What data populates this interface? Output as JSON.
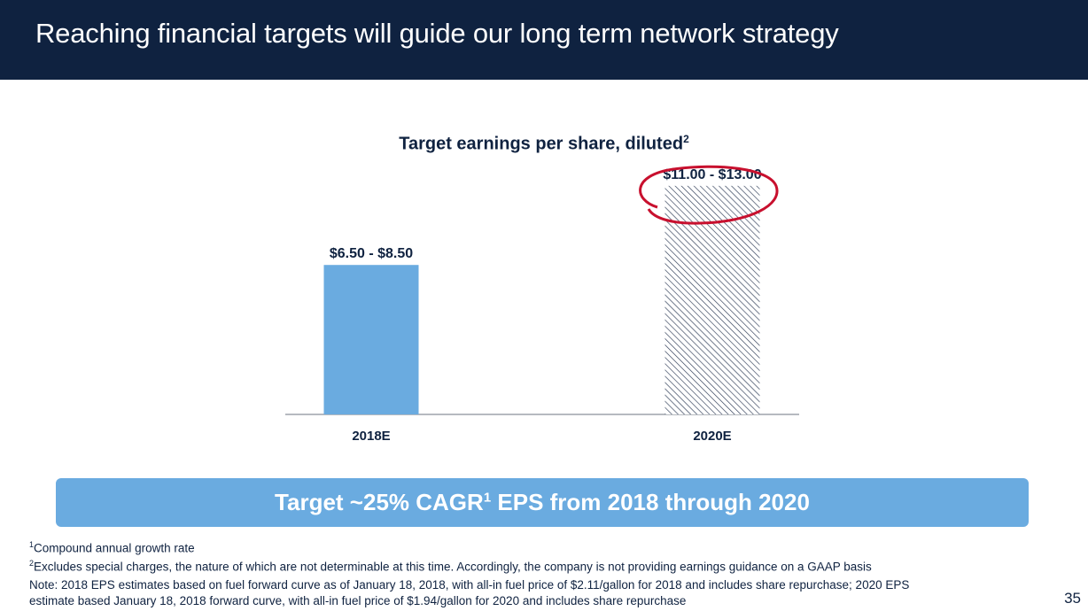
{
  "header": {
    "title": "Reaching financial targets will guide our long term network strategy"
  },
  "chart_data": {
    "type": "bar",
    "title": "Target earnings per share, diluted",
    "title_footnote_ref": "2",
    "categories": [
      "2018E",
      "2020E"
    ],
    "ranges": [
      [
        6.5,
        8.5
      ],
      [
        11.0,
        13.0
      ]
    ],
    "data_labels": [
      "$6.50 - $8.50",
      "$11.00 - $13.00"
    ],
    "bar_styles": [
      "solid",
      "hatched"
    ],
    "colors": {
      "solid": "#6aabe0",
      "hatch": "#2d3b55"
    },
    "annotation": "circled 2020E label",
    "xlabel": "",
    "ylabel": "",
    "ylim": [
      0,
      14
    ],
    "grid": false
  },
  "banner": {
    "text_before": "Target ~25% CAGR",
    "sup": "1",
    "text_after": " EPS from 2018 through 2020"
  },
  "footnotes": {
    "f1_ref": "1",
    "f1_text": "Compound annual growth rate",
    "f2_ref": "2",
    "f2_text": "Excludes special charges, the nature of which are not determinable at this time. Accordingly, the company is not providing earnings guidance on a GAAP basis",
    "note_line1": "Note: 2018 EPS estimates based on fuel forward curve as of January 18, 2018, with all-in fuel price of $2.11/gallon for 2018 and includes share repurchase; 2020 EPS",
    "note_line2": "estimate based January 18, 2018 forward curve, with all-in fuel price of $1.94/gallon for 2020 and includes share repurchase"
  },
  "page": {
    "number": "35"
  }
}
